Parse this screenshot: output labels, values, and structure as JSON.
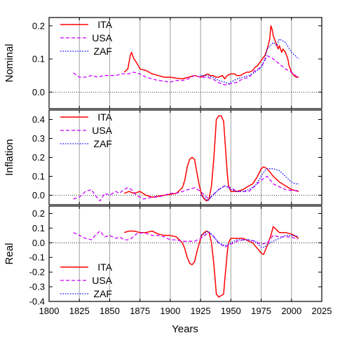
{
  "chart_data": [
    {
      "type": "line",
      "panel_label": "Nominal",
      "ylabel": "Nominal",
      "ylim": [
        -0.05,
        0.225
      ],
      "yticks": [
        0.0,
        0.1,
        0.2
      ],
      "ytick_labels": [
        "0.0",
        "0.1",
        "0.2"
      ],
      "xlim": [
        1800,
        2025
      ],
      "vgrid": [
        1825,
        1850,
        1875,
        1900,
        1925,
        1950,
        1975,
        2000
      ],
      "zero_line": true,
      "legend": {
        "position": "top-left",
        "labels": [
          "ITA",
          "USA",
          "ZAF"
        ]
      },
      "series": [
        {
          "name": "ITA",
          "color": "#ff0000",
          "dash": "solid",
          "x": [
            1862,
            1865,
            1867,
            1868,
            1870,
            1872,
            1875,
            1880,
            1885,
            1890,
            1895,
            1900,
            1905,
            1910,
            1915,
            1920,
            1925,
            1928,
            1931,
            1933,
            1935,
            1938,
            1940,
            1943,
            1945,
            1947,
            1950,
            1953,
            1955,
            1958,
            1960,
            1963,
            1965,
            1968,
            1970,
            1972,
            1974,
            1976,
            1978,
            1980,
            1982,
            1983,
            1984,
            1985,
            1987,
            1989,
            1990,
            1992,
            1993,
            1995,
            1997,
            1998,
            2000,
            2002,
            2004,
            2006
          ],
          "y": [
            0.06,
            0.07,
            0.11,
            0.12,
            0.1,
            0.09,
            0.07,
            0.065,
            0.055,
            0.05,
            0.045,
            0.045,
            0.042,
            0.04,
            0.045,
            0.05,
            0.045,
            0.05,
            0.055,
            0.05,
            0.05,
            0.045,
            0.045,
            0.05,
            0.04,
            0.05,
            0.055,
            0.055,
            0.05,
            0.05,
            0.055,
            0.06,
            0.06,
            0.065,
            0.075,
            0.08,
            0.09,
            0.1,
            0.11,
            0.13,
            0.16,
            0.2,
            0.19,
            0.17,
            0.15,
            0.13,
            0.14,
            0.12,
            0.13,
            0.12,
            0.1,
            0.08,
            0.06,
            0.05,
            0.045,
            0.045
          ]
        },
        {
          "name": "USA",
          "color": "#cc00ff",
          "dash": "dashed",
          "x": [
            1820,
            1825,
            1830,
            1835,
            1840,
            1845,
            1850,
            1855,
            1860,
            1865,
            1870,
            1875,
            1880,
            1885,
            1890,
            1895,
            1900,
            1905,
            1910,
            1915,
            1920,
            1925,
            1930,
            1935,
            1940,
            1945,
            1950,
            1955,
            1960,
            1965,
            1970,
            1975,
            1980,
            1985,
            1990,
            1995,
            2000,
            2005
          ],
          "y": [
            0.058,
            0.045,
            0.045,
            0.05,
            0.045,
            0.05,
            0.05,
            0.05,
            0.055,
            0.055,
            0.06,
            0.055,
            0.045,
            0.04,
            0.035,
            0.033,
            0.03,
            0.035,
            0.035,
            0.04,
            0.05,
            0.045,
            0.045,
            0.04,
            0.028,
            0.022,
            0.025,
            0.03,
            0.04,
            0.045,
            0.065,
            0.075,
            0.11,
            0.1,
            0.085,
            0.07,
            0.06,
            0.045
          ]
        },
        {
          "name": "ZAF",
          "color": "#0000ff",
          "dash": "dotted",
          "x": [
            1925,
            1930,
            1935,
            1940,
            1945,
            1948,
            1950,
            1955,
            1960,
            1965,
            1970,
            1975,
            1978,
            1980,
            1985,
            1988,
            1990,
            1995,
            2000,
            2003,
            2006
          ],
          "y": [
            0.05,
            0.05,
            0.045,
            0.035,
            0.03,
            0.025,
            0.03,
            0.04,
            0.045,
            0.05,
            0.06,
            0.075,
            0.1,
            0.13,
            0.15,
            0.14,
            0.16,
            0.15,
            0.12,
            0.11,
            0.1
          ]
        }
      ]
    },
    {
      "type": "line",
      "panel_label": "Inflation",
      "ylabel": "Inflation",
      "ylim": [
        -0.05,
        0.45
      ],
      "yticks": [
        0.0,
        0.1,
        0.2,
        0.3,
        0.4
      ],
      "ytick_labels": [
        "0.0",
        "0.1",
        "0.2",
        "0.3",
        "0.4"
      ],
      "xlim": [
        1800,
        2025
      ],
      "vgrid": [
        1825,
        1850,
        1875,
        1900,
        1925,
        1950,
        1975,
        2000
      ],
      "zero_line": true,
      "legend": {
        "position": "top-left",
        "labels": [
          "ITA",
          "USA",
          "ZAF"
        ]
      },
      "series": [
        {
          "name": "ITA",
          "color": "#ff0000",
          "dash": "solid",
          "x": [
            1862,
            1866,
            1870,
            1875,
            1880,
            1885,
            1890,
            1895,
            1900,
            1905,
            1910,
            1912,
            1914,
            1916,
            1918,
            1920,
            1922,
            1924,
            1926,
            1928,
            1930,
            1932,
            1934,
            1936,
            1937,
            1938,
            1940,
            1942,
            1944,
            1945,
            1947,
            1948,
            1950,
            1955,
            1960,
            1965,
            1968,
            1972,
            1975,
            1977,
            1980,
            1985,
            1990,
            1995,
            2000,
            2006
          ],
          "y": [
            0.01,
            0.02,
            0.01,
            0.02,
            0.0,
            -0.01,
            -0.005,
            0.0,
            0.005,
            0.01,
            0.04,
            0.08,
            0.15,
            0.19,
            0.2,
            0.19,
            0.12,
            0.05,
            0.0,
            -0.02,
            -0.03,
            -0.02,
            0.05,
            0.2,
            0.3,
            0.4,
            0.42,
            0.42,
            0.39,
            0.3,
            0.12,
            0.05,
            0.02,
            0.02,
            0.03,
            0.05,
            0.06,
            0.1,
            0.14,
            0.15,
            0.14,
            0.1,
            0.07,
            0.05,
            0.03,
            0.02
          ]
        },
        {
          "name": "USA",
          "color": "#cc00ff",
          "dash": "dashed",
          "x": [
            1820,
            1825,
            1830,
            1835,
            1838,
            1842,
            1846,
            1850,
            1855,
            1858,
            1862,
            1865,
            1868,
            1872,
            1878,
            1885,
            1890,
            1895,
            1900,
            1905,
            1910,
            1915,
            1920,
            1925,
            1930,
            1932,
            1935,
            1940,
            1945,
            1950,
            1955,
            1960,
            1965,
            1970,
            1975,
            1980,
            1985,
            1990,
            1995,
            2000,
            2005
          ],
          "y": [
            -0.02,
            -0.01,
            0.02,
            0.03,
            0.0,
            -0.03,
            0.01,
            0.0,
            0.02,
            0.01,
            0.03,
            0.04,
            0.03,
            0.0,
            -0.02,
            -0.01,
            -0.01,
            0.0,
            0.01,
            0.01,
            0.02,
            0.03,
            0.04,
            0.02,
            -0.01,
            -0.02,
            0.0,
            0.03,
            0.05,
            0.04,
            0.02,
            0.02,
            0.02,
            0.05,
            0.08,
            0.1,
            0.06,
            0.045,
            0.03,
            0.025,
            0.025
          ]
        },
        {
          "name": "ZAF",
          "color": "#0000ff",
          "dash": "dotted",
          "x": [
            1925,
            1928,
            1931,
            1935,
            1940,
            1945,
            1948,
            1950,
            1955,
            1960,
            1965,
            1970,
            1975,
            1978,
            1980,
            1985,
            1990,
            1995,
            2000,
            2003,
            2006
          ],
          "y": [
            0.0,
            -0.01,
            -0.03,
            0.0,
            0.03,
            0.05,
            0.04,
            0.03,
            0.02,
            0.02,
            0.03,
            0.05,
            0.1,
            0.13,
            0.14,
            0.14,
            0.13,
            0.1,
            0.07,
            0.06,
            0.06
          ]
        }
      ]
    },
    {
      "type": "line",
      "panel_label": "Real",
      "ylabel": "Real",
      "ylim": [
        -0.4,
        0.25
      ],
      "yticks": [
        -0.4,
        -0.3,
        -0.2,
        -0.1,
        0.0,
        0.1,
        0.2
      ],
      "ytick_labels": [
        "-0.4",
        "-0.3",
        "-0.2",
        "-0.1",
        "0.0",
        "0.1",
        "0.2"
      ],
      "xlim": [
        1800,
        2025
      ],
      "xticks": [
        1800,
        1825,
        1850,
        1875,
        1900,
        1925,
        1950,
        1975,
        2000,
        2025
      ],
      "xtick_labels": [
        "1800",
        "1825",
        "1850",
        "1875",
        "1900",
        "1925",
        "1950",
        "1975",
        "2000",
        "2025"
      ],
      "xlabel": "Years",
      "vgrid": [
        1825,
        1850,
        1875,
        1900,
        1925,
        1950,
        1975,
        2000
      ],
      "zero_line": true,
      "legend": {
        "position": "bottom-left",
        "labels": [
          "ITA",
          "USA",
          "ZAF"
        ]
      },
      "series": [
        {
          "name": "ITA",
          "color": "#ff0000",
          "dash": "solid",
          "x": [
            1862,
            1866,
            1870,
            1875,
            1880,
            1885,
            1890,
            1895,
            1900,
            1905,
            1910,
            1912,
            1914,
            1916,
            1918,
            1920,
            1922,
            1924,
            1926,
            1928,
            1930,
            1932,
            1934,
            1936,
            1937,
            1938,
            1940,
            1942,
            1944,
            1945,
            1947,
            1948,
            1950,
            1955,
            1960,
            1965,
            1968,
            1972,
            1975,
            1977,
            1980,
            1983,
            1985,
            1990,
            1995,
            2000,
            2006
          ],
          "y": [
            0.07,
            0.08,
            0.08,
            0.07,
            0.07,
            0.08,
            0.06,
            0.05,
            0.05,
            0.04,
            0.0,
            -0.04,
            -0.1,
            -0.14,
            -0.15,
            -0.13,
            -0.06,
            0.0,
            0.05,
            0.07,
            0.08,
            0.07,
            0.0,
            -0.15,
            -0.25,
            -0.35,
            -0.37,
            -0.36,
            -0.35,
            -0.25,
            -0.07,
            0.0,
            0.03,
            0.03,
            0.03,
            0.01,
            0.0,
            -0.04,
            -0.07,
            -0.08,
            -0.02,
            0.05,
            0.11,
            0.07,
            0.07,
            0.06,
            0.03
          ]
        },
        {
          "name": "USA",
          "color": "#cc00ff",
          "dash": "dashed",
          "x": [
            1820,
            1825,
            1830,
            1835,
            1838,
            1842,
            1846,
            1850,
            1855,
            1858,
            1862,
            1865,
            1868,
            1872,
            1878,
            1885,
            1890,
            1895,
            1900,
            1905,
            1910,
            1915,
            1920,
            1925,
            1930,
            1932,
            1935,
            1940,
            1945,
            1950,
            1955,
            1960,
            1965,
            1970,
            1975,
            1980,
            1985,
            1990,
            1995,
            2000,
            2005
          ],
          "y": [
            0.07,
            0.05,
            0.03,
            0.02,
            0.05,
            0.08,
            0.04,
            0.05,
            0.03,
            0.04,
            0.02,
            0.02,
            0.03,
            0.06,
            0.07,
            0.05,
            0.05,
            0.04,
            0.02,
            0.02,
            0.01,
            0.01,
            0.01,
            0.03,
            0.06,
            0.07,
            0.05,
            0.0,
            -0.03,
            -0.01,
            0.01,
            0.02,
            0.02,
            0.01,
            -0.01,
            0.0,
            0.05,
            0.04,
            0.04,
            0.04,
            0.02
          ]
        },
        {
          "name": "ZAF",
          "color": "#0000ff",
          "dash": "dotted",
          "x": [
            1925,
            1928,
            1931,
            1935,
            1940,
            1945,
            1948,
            1950,
            1955,
            1960,
            1965,
            1970,
            1975,
            1978,
            1980,
            1985,
            1990,
            1995,
            2000,
            2003,
            2006
          ],
          "y": [
            0.05,
            0.06,
            0.08,
            0.05,
            0.0,
            -0.02,
            -0.01,
            0.0,
            0.02,
            0.02,
            0.02,
            0.01,
            -0.03,
            -0.03,
            -0.01,
            0.01,
            0.03,
            0.05,
            0.05,
            0.05,
            0.04
          ]
        }
      ]
    }
  ]
}
